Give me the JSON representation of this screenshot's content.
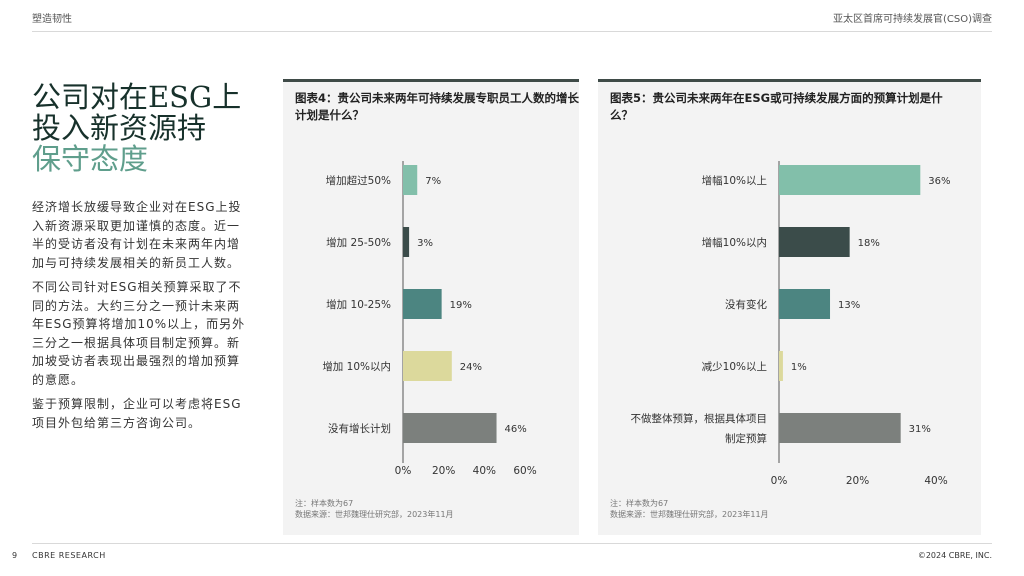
{
  "header": {
    "section": "塑造韧性",
    "report": "亚太区首席可持续发展官(CSO)调查"
  },
  "headline": {
    "line1": "公司对在ESG上",
    "line2": "投入新资源持",
    "line3": "保守态度"
  },
  "body": [
    "经济增长放缓导致企业对在ESG上投入新资源采取更加谨慎的态度。近一半的受访者没有计划在未来两年内增加与可持续发展相关的新员工人数。",
    "不同公司针对ESG相关预算采取了不同的方法。大约三分之一预计未来两年ESG预算将增加10%以上，而另外三分之一根据具体项目制定预算。新加坡受访者表现出最强烈的增加预算的意愿。",
    "鉴于预算限制，企业可以考虑将ESG项目外包给第三方咨询公司。"
  ],
  "chart_data": [
    {
      "type": "bar",
      "orientation": "horizontal",
      "title": "图表4：贵公司未来两年可持续发展专职员工人数的增长计划是什么？",
      "categories": [
        "增加超过50%",
        "增加 25-50%",
        "增加 10-25%",
        "增加 10%以内",
        "没有增长计划"
      ],
      "values": [
        7,
        3,
        19,
        24,
        46
      ],
      "value_labels": [
        "7%",
        "3%",
        "19%",
        "24%",
        "46%"
      ],
      "colors": [
        "#82bfaa",
        "#3b4c4a",
        "#4c8581",
        "#dcd99c",
        "#7c807d"
      ],
      "xlim": [
        0,
        60
      ],
      "xticks": [
        "0%",
        "20%",
        "40%",
        "60%"
      ],
      "note": "注：样本数为67",
      "source": "数据来源：世邦魏理仕研究部，2023年11月"
    },
    {
      "type": "bar",
      "orientation": "horizontal",
      "title": "图表5：贵公司未来两年在ESG或可持续发展方面的预算计划是什么？",
      "categories": [
        "增幅10%以上",
        "增幅10%以内",
        "没有变化",
        "减少10%以上",
        "不做整体预算，根据具体项目\n制定预算"
      ],
      "values": [
        36,
        18,
        13,
        1,
        31
      ],
      "value_labels": [
        "36%",
        "18%",
        "13%",
        "1%",
        "31%"
      ],
      "colors": [
        "#82bfaa",
        "#3b4c4a",
        "#4c8581",
        "#dcd99c",
        "#7c807d"
      ],
      "xlim": [
        0,
        40
      ],
      "xticks": [
        "0%",
        "20%",
        "40%"
      ],
      "note": "注：样本数为67",
      "source": "数据来源：世邦魏理仕研究部，2023年11月"
    }
  ],
  "footer": {
    "page": "9",
    "brand": "CBRE RESEARCH",
    "copyright": "©2024 CBRE, INC."
  }
}
